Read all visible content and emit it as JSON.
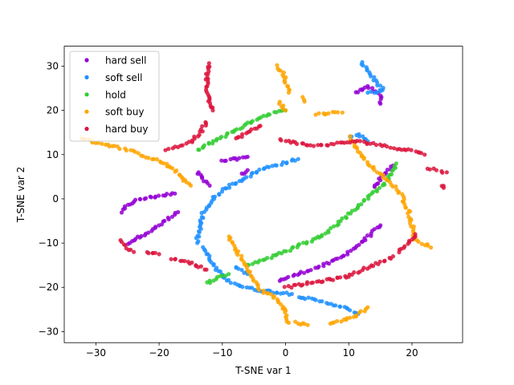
{
  "chart_data": {
    "type": "scatter",
    "title": "",
    "xlabel": "T-SNE var 1",
    "ylabel": "T-SNE var 2",
    "xlim": [
      -35,
      28
    ],
    "ylim": [
      -32.5,
      34.5
    ],
    "x_ticks": [
      -30,
      -20,
      -10,
      0,
      10,
      20
    ],
    "y_ticks": [
      -30,
      -20,
      -10,
      0,
      10,
      20,
      30
    ],
    "grid": false,
    "legend_position": "top-left",
    "series": [
      {
        "name": "hard sell",
        "color": "#9400d3",
        "paths": [
          [
            [
              -26,
              -3
            ],
            [
              -25,
              -1.5
            ],
            [
              -24,
              -0.5
            ],
            [
              -22,
              0.2
            ],
            [
              -20,
              0.7
            ],
            [
              -17.5,
              1.2
            ]
          ],
          [
            [
              -25,
              -10
            ],
            [
              -23,
              -8.5
            ],
            [
              -21,
              -7
            ],
            [
              -19,
              -5
            ],
            [
              -17,
              -3
            ]
          ],
          [
            [
              -14,
              6
            ],
            [
              -13,
              4.5
            ],
            [
              -12,
              3
            ]
          ],
          [
            [
              -10,
              8.5
            ],
            [
              -8,
              9
            ],
            [
              -6,
              9.5
            ]
          ],
          [
            [
              -7,
              5.5
            ],
            [
              -6,
              6.5
            ]
          ],
          [
            [
              -1,
              -18.5
            ],
            [
              1,
              -17.5
            ],
            [
              3,
              -16.5
            ],
            [
              5,
              -15.5
            ],
            [
              7,
              -14.5
            ],
            [
              9,
              -13
            ],
            [
              11,
              -11
            ],
            [
              13,
              -8.5
            ],
            [
              15,
              -6
            ]
          ],
          [
            [
              14,
              2.5
            ],
            [
              15,
              4.5
            ],
            [
              16,
              6
            ],
            [
              17,
              7.5
            ]
          ],
          [
            [
              11,
              24
            ],
            [
              13,
              25.5
            ],
            [
              15,
              23.5
            ],
            [
              15,
              21.5
            ]
          ]
        ]
      },
      {
        "name": "soft sell",
        "color": "#1e90ff",
        "paths": [
          [
            [
              -14,
              -10
            ],
            [
              -13.5,
              -6
            ],
            [
              -13,
              -3
            ],
            [
              -11.5,
              0
            ],
            [
              -10,
              2
            ],
            [
              -8,
              3.5
            ],
            [
              -6,
              5
            ],
            [
              -4,
              6.5
            ],
            [
              -2,
              7.5
            ],
            [
              0,
              8.2
            ],
            [
              2,
              9
            ]
          ],
          [
            [
              -13,
              -11
            ],
            [
              -12,
              -13.5
            ],
            [
              -11,
              -16
            ],
            [
              -9.5,
              -18
            ],
            [
              -7.5,
              -19.5
            ],
            [
              -5,
              -20.5
            ],
            [
              -2,
              -21
            ],
            [
              1,
              -21.5
            ]
          ],
          [
            [
              2,
              -22
            ],
            [
              5,
              -23
            ],
            [
              8,
              -24
            ],
            [
              10,
              -25
            ],
            [
              11.5,
              -26
            ]
          ],
          [
            [
              -8,
              -15.5
            ],
            [
              -6,
              -17
            ]
          ],
          [
            [
              12,
              31
            ],
            [
              13,
              29
            ],
            [
              14,
              27
            ],
            [
              15.5,
              24.5
            ],
            [
              13,
              24
            ]
          ],
          [
            [
              10,
              14
            ],
            [
              11.5,
              14.5
            ],
            [
              13,
              13
            ]
          ]
        ]
      },
      {
        "name": "hold",
        "color": "#32cd32",
        "paths": [
          [
            [
              -14,
              11
            ],
            [
              -12,
              12.5
            ],
            [
              -10,
              14
            ],
            [
              -8,
              15.5
            ],
            [
              -6,
              17
            ],
            [
              -4,
              18.5
            ],
            [
              -2,
              19.5
            ],
            [
              0,
              20
            ]
          ],
          [
            [
              -12.5,
              -19
            ],
            [
              -11,
              -18
            ],
            [
              -9,
              -17
            ]
          ],
          [
            [
              -6,
              -15
            ],
            [
              -4,
              -14
            ],
            [
              -2,
              -13
            ],
            [
              0,
              -12
            ],
            [
              2,
              -10.5
            ],
            [
              4,
              -9.5
            ],
            [
              6,
              -8
            ],
            [
              8,
              -6
            ],
            [
              10,
              -3.5
            ],
            [
              12,
              -1
            ],
            [
              14,
              1.5
            ],
            [
              16,
              4
            ],
            [
              17.5,
              8
            ]
          ]
        ]
      },
      {
        "name": "soft buy",
        "color": "#ffa500",
        "paths": [
          [
            [
              -32,
              13.5
            ],
            [
              -29,
              12.5
            ],
            [
              -26,
              11.5
            ],
            [
              -23,
              10
            ],
            [
              -20,
              8.5
            ],
            [
              -18,
              7
            ],
            [
              -16.5,
              5
            ],
            [
              -15,
              3
            ]
          ],
          [
            [
              -9,
              -8.5
            ],
            [
              -8,
              -11
            ],
            [
              -7,
              -13.5
            ],
            [
              -6,
              -16
            ],
            [
              -5,
              -18.5
            ],
            [
              -4,
              -20.5
            ],
            [
              -2,
              -22
            ],
            [
              0,
              -25
            ],
            [
              0.5,
              -28
            ]
          ],
          [
            [
              1.5,
              -28
            ],
            [
              3.5,
              -28.5
            ]
          ],
          [
            [
              7,
              -28
            ],
            [
              9,
              -27.5
            ],
            [
              11,
              -26.5
            ],
            [
              13,
              -24.5
            ]
          ],
          [
            [
              -1.5,
              30
            ],
            [
              -0.5,
              28.5
            ],
            [
              0,
              26.5
            ],
            [
              0.5,
              24
            ]
          ],
          [
            [
              -1,
              22
            ],
            [
              0,
              20
            ]
          ],
          [
            [
              2.5,
              23
            ],
            [
              3,
              22
            ]
          ],
          [
            [
              5,
              19
            ],
            [
              7,
              19.5
            ],
            [
              9,
              19.5
            ]
          ],
          [
            [
              10,
              14
            ],
            [
              11,
              12
            ],
            [
              12,
              10
            ],
            [
              13,
              8
            ],
            [
              15,
              5.5
            ],
            [
              17,
              3
            ],
            [
              18.5,
              0.5
            ],
            [
              19.5,
              -3
            ],
            [
              20,
              -6
            ],
            [
              20.5,
              -9
            ],
            [
              21.5,
              -10
            ],
            [
              23,
              -11
            ]
          ]
        ]
      },
      {
        "name": "hard buy",
        "color": "#dc143c",
        "paths": [
          [
            [
              -12,
              30.5
            ],
            [
              -12.5,
              28
            ],
            [
              -12.5,
              25.5
            ],
            [
              -12,
              22
            ],
            [
              -11.5,
              20
            ]
          ],
          [
            [
              -12.5,
              17.5
            ],
            [
              -13.5,
              15
            ],
            [
              -15,
              13
            ],
            [
              -18,
              11.5
            ],
            [
              -19,
              11
            ]
          ],
          [
            [
              -8,
              13.5
            ],
            [
              -6,
              15
            ],
            [
              -4,
              16.5
            ]
          ],
          [
            [
              -1,
              13.5
            ],
            [
              2,
              12.5
            ],
            [
              5,
              12
            ],
            [
              8,
              12.5
            ],
            [
              11,
              13
            ],
            [
              14,
              12.5
            ],
            [
              17,
              11.5
            ],
            [
              20,
              11
            ],
            [
              22,
              10
            ]
          ],
          [
            [
              22.5,
              7
            ],
            [
              24,
              6.5
            ],
            [
              25.5,
              6
            ]
          ],
          [
            [
              24.5,
              3
            ],
            [
              25,
              2.5
            ]
          ],
          [
            [
              -26,
              -9.5
            ],
            [
              -25,
              -11
            ],
            [
              -24,
              -12
            ]
          ],
          [
            [
              -22,
              -12
            ],
            [
              -20,
              -12.5
            ]
          ],
          [
            [
              -18,
              -13.5
            ],
            [
              -16,
              -14
            ],
            [
              -14,
              -15
            ],
            [
              -12.5,
              -16
            ]
          ],
          [
            [
              0,
              -20
            ],
            [
              2,
              -19.5
            ],
            [
              4,
              -19
            ],
            [
              6,
              -18.5
            ],
            [
              8,
              -18
            ],
            [
              10,
              -17.5
            ],
            [
              12,
              -16
            ],
            [
              14,
              -15
            ],
            [
              17,
              -13
            ]
          ],
          [
            [
              18,
              -12
            ],
            [
              19.5,
              -10
            ],
            [
              20.5,
              -8
            ]
          ]
        ]
      }
    ]
  }
}
